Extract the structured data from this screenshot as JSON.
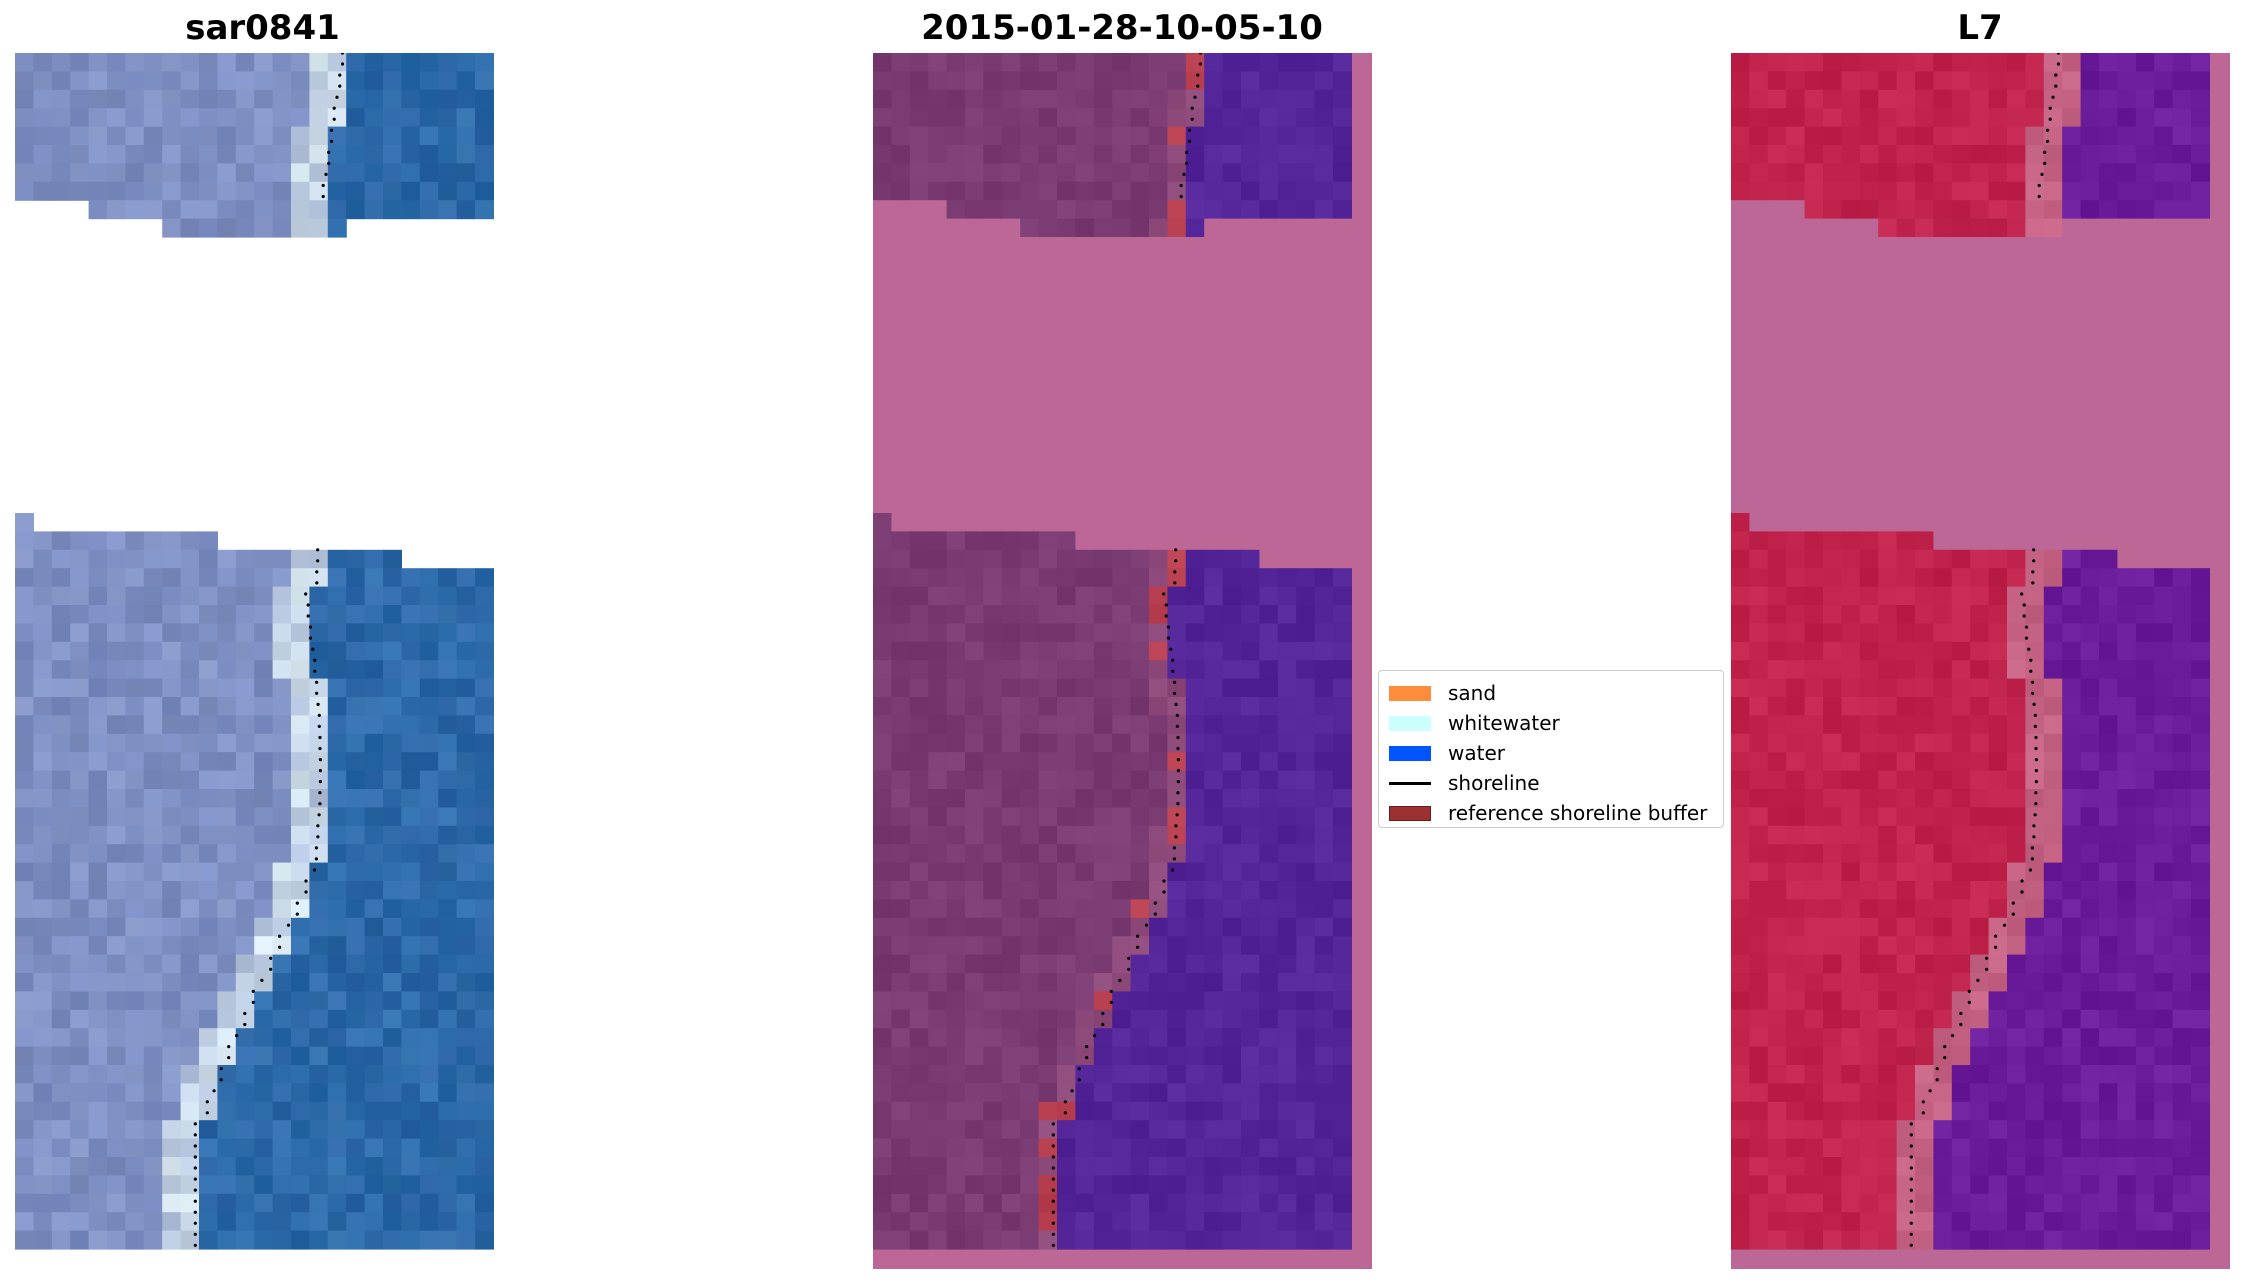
{
  "panels": [
    {
      "title": "sar0841"
    },
    {
      "title": "2015-01-28-10-05-10"
    },
    {
      "title": "L7"
    }
  ],
  "legend": {
    "items": [
      {
        "label": "sand",
        "kind": "patch",
        "color": "#ff8c3c"
      },
      {
        "label": "whitewater",
        "kind": "patch",
        "color": "#ccffff"
      },
      {
        "label": "water",
        "kind": "patch",
        "color": "#0055ff"
      },
      {
        "label": "shoreline",
        "kind": "line",
        "color": "#000000"
      },
      {
        "label": "reference shoreline buffer",
        "kind": "patch",
        "color": "#9b3030",
        "edge": "#6b1c1c"
      }
    ]
  },
  "colors": {
    "sar_land": "#8090c0",
    "sar_water": "#2f68a8",
    "classified_land": "#7a3a72",
    "classified_water": "#532598",
    "nodata_mask": "#bc6796",
    "reference_buffer": "#b84050",
    "l7_land": "#c0244c",
    "l7_water": "#6a1c9a"
  }
}
